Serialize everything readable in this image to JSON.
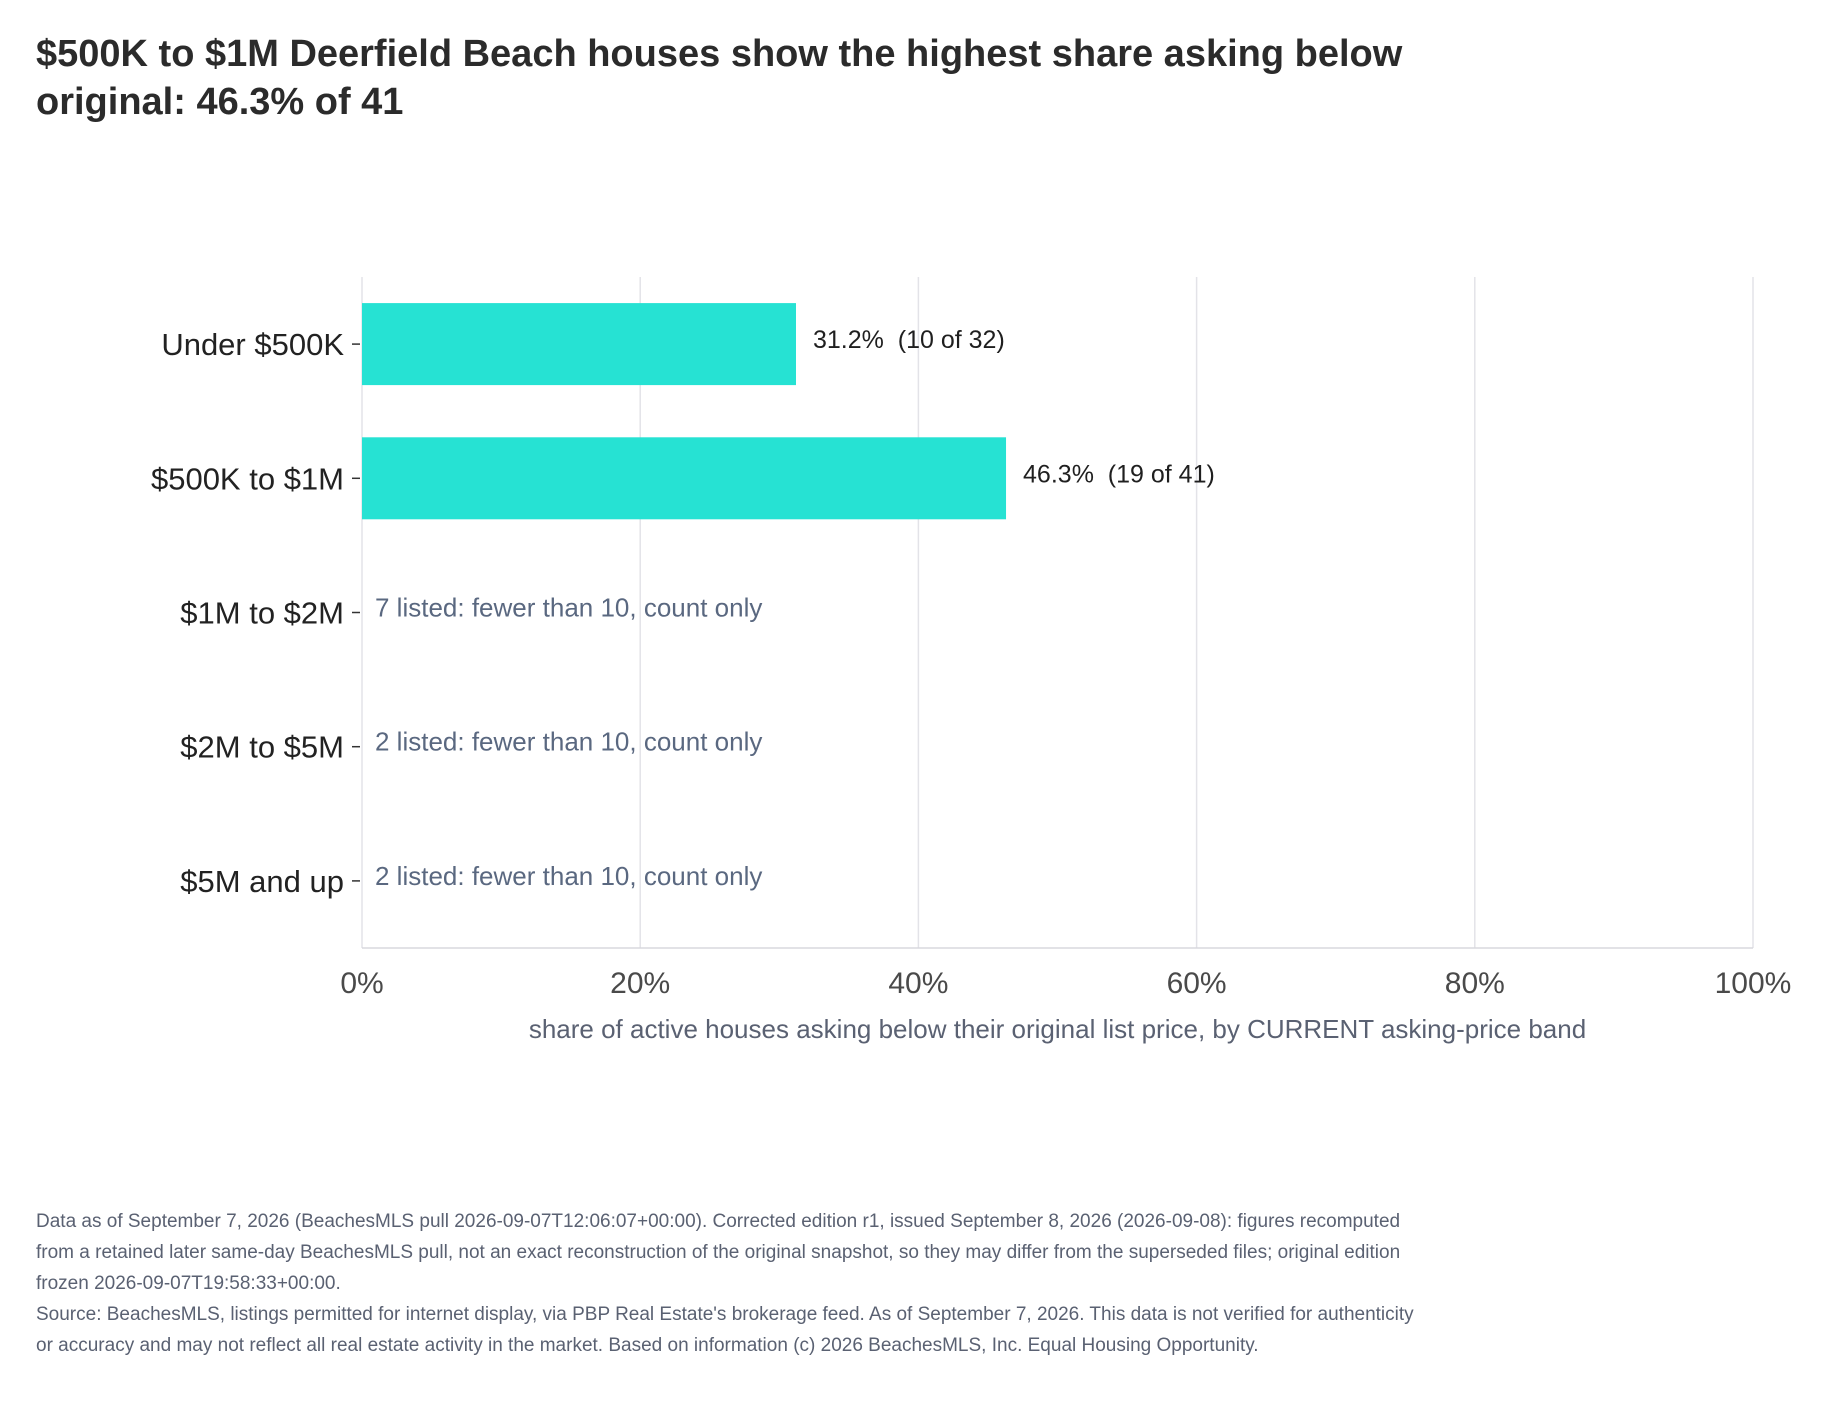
{
  "chart_data": {
    "type": "bar",
    "orientation": "horizontal",
    "title": "$500K to $1M Deerfield Beach houses show the highest share asking below original: 46.3% of 41",
    "xlabel": "share of active houses asking below their original list price, by CURRENT asking-price band",
    "ylabel": "",
    "xlim": [
      0,
      100
    ],
    "x_ticks": [
      "0%",
      "20%",
      "40%",
      "60%",
      "80%",
      "100%"
    ],
    "grid": true,
    "categories": [
      "Under $500K",
      "$500K to $1M",
      "$1M to $2M",
      "$2M to $5M",
      "$5M and up"
    ],
    "values": [
      31.2,
      46.3,
      null,
      null,
      null
    ],
    "labels": [
      "31.2%  (10 of 32)",
      "46.3%  (19 of 41)",
      "7 listed: fewer than 10, count only",
      "2 listed: fewer than 10, count only",
      "2 listed: fewer than 10, count only"
    ],
    "bar_color": "#26e2d3",
    "label_color": "#1f1f1f",
    "count_only_color": "#5a6880",
    "grid_color": "#e3e3e8"
  },
  "notes": {
    "line1": "Data as of September 7, 2026 (BeachesMLS pull 2026-09-07T12:06:07+00:00). Corrected edition r1, issued September 8, 2026 (2026-09-08): figures recomputed from a retained later same-day BeachesMLS pull, not an exact reconstruction of the original snapshot, so they may differ from the superseded files; original edition frozen 2026-09-07T19:58:33+00:00.",
    "line2": "Source: BeachesMLS, listings permitted for internet display, via PBP Real Estate's brokerage feed. As of September 7, 2026. This data is not verified for authenticity or accuracy and may not reflect all real estate activity in the market. Based on information (c) 2026 BeachesMLS, Inc. Equal Housing Opportunity."
  }
}
